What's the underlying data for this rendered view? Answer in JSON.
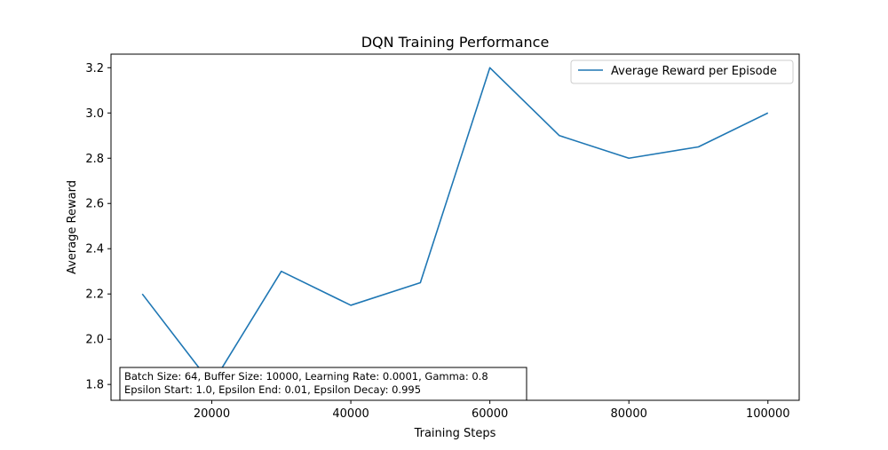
{
  "chart_data": {
    "type": "line",
    "title": "DQN Training Performance",
    "xlabel": "Training Steps",
    "ylabel": "Average Reward",
    "xlim": [
      5500,
      104500
    ],
    "ylim": [
      1.73,
      3.26
    ],
    "xticks": [
      20000,
      40000,
      60000,
      80000,
      100000
    ],
    "yticks": [
      1.8,
      2.0,
      2.2,
      2.4,
      2.6,
      2.8,
      3.0,
      3.2
    ],
    "ytick_labels": [
      "1.8",
      "2.0",
      "2.2",
      "2.4",
      "2.6",
      "2.8",
      "3.0",
      "3.2"
    ],
    "grid": false,
    "legend_position": "top-right",
    "series": [
      {
        "name": "Average Reward per Episode",
        "color": "#1f77b4",
        "x": [
          10000,
          20000,
          30000,
          40000,
          50000,
          60000,
          70000,
          80000,
          90000,
          100000
        ],
        "y": [
          2.2,
          1.8,
          2.3,
          2.15,
          2.25,
          3.2,
          2.9,
          2.8,
          2.85,
          3.0
        ]
      }
    ],
    "annotation": {
      "lines": [
        "Batch Size: 64, Buffer Size: 10000, Learning Rate: 0.0001, Gamma: 0.8",
        "Epsilon Start: 1.0, Epsilon End: 0.01, Epsilon Decay: 0.995"
      ]
    }
  }
}
